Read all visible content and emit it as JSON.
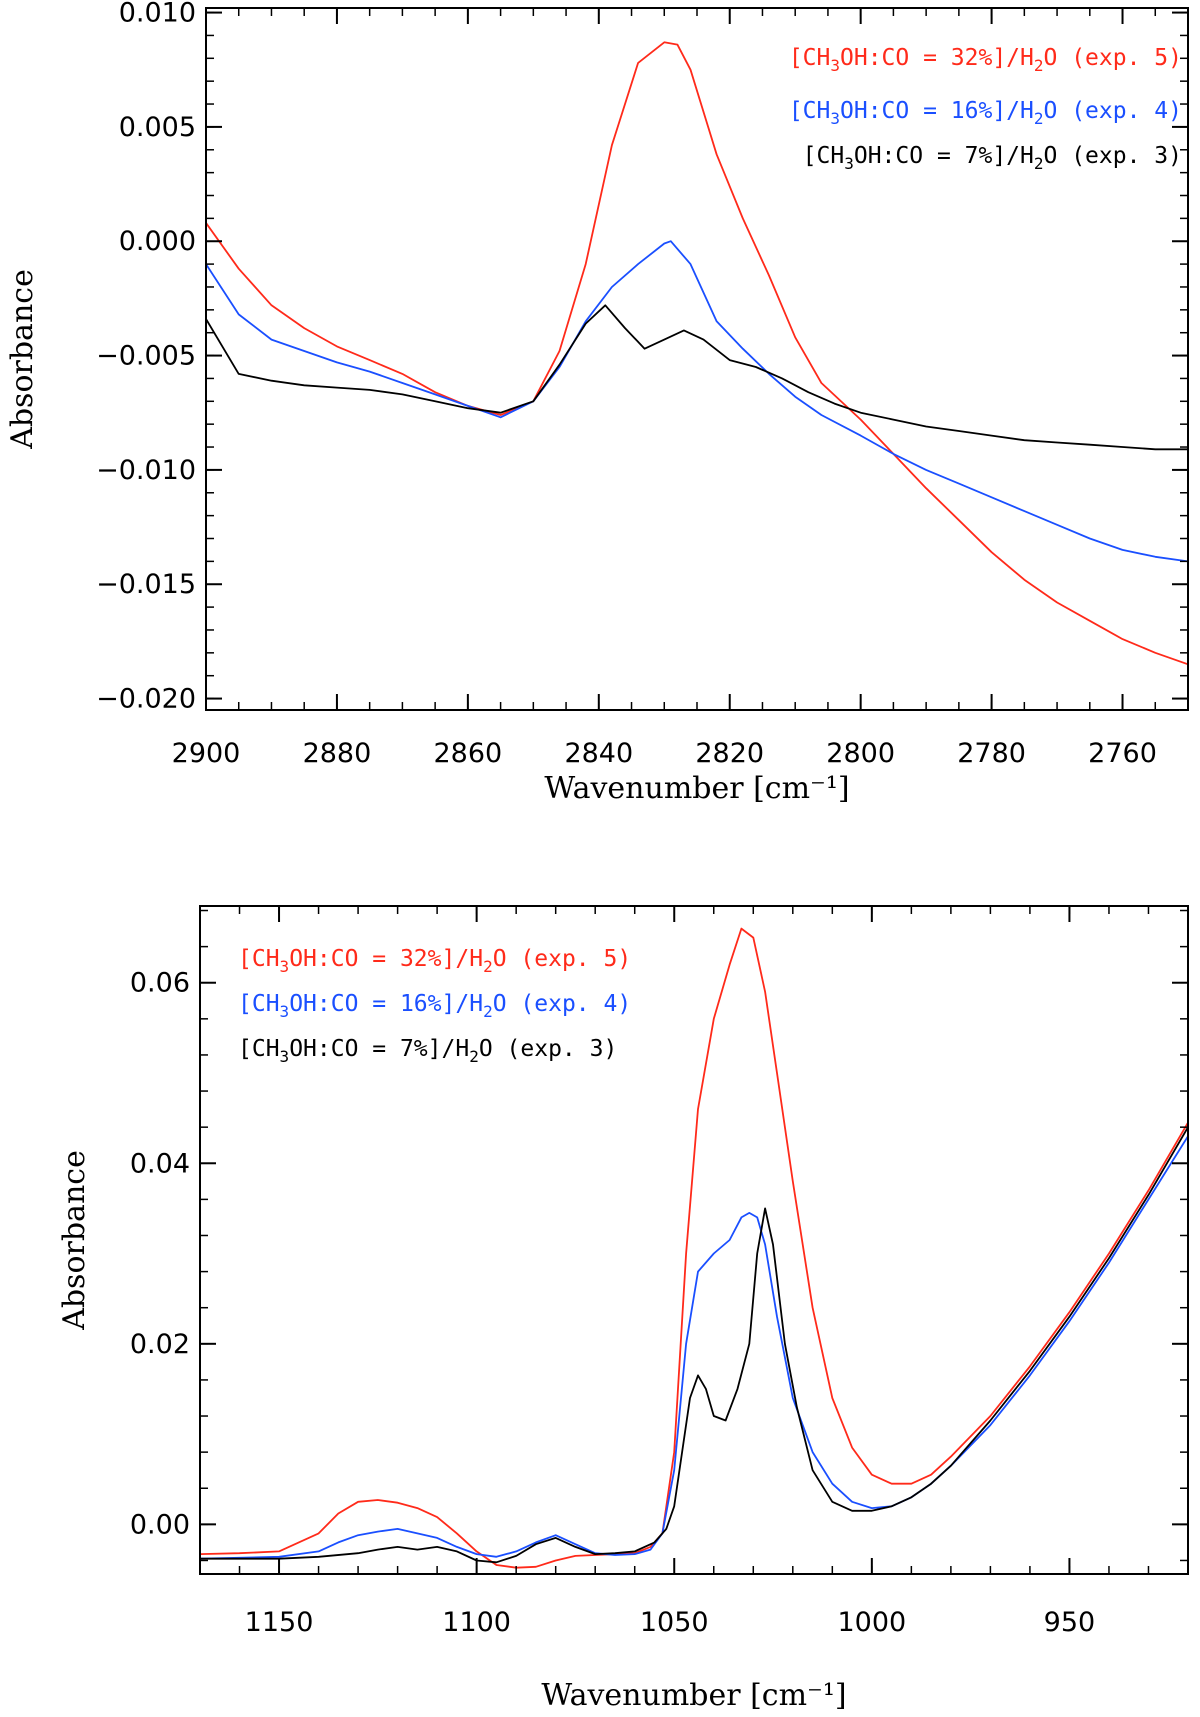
{
  "chart_data": [
    {
      "type": "line",
      "id": "top",
      "title": "",
      "xlabel": "Wavenumber [cm⁻¹]",
      "ylabel": "Absorbance",
      "xlim": [
        2900,
        2750
      ],
      "ylim": [
        -0.0205,
        0.0102
      ],
      "x_ticks": [
        2900,
        2880,
        2860,
        2840,
        2820,
        2800,
        2780,
        2760
      ],
      "x_tick_labels": [
        "2900",
        "2880",
        "2860",
        "2840",
        "2820",
        "2800",
        "2780",
        "2760"
      ],
      "y_ticks": [
        0.01,
        0.005,
        0.0,
        -0.005,
        -0.01,
        -0.015,
        -0.02
      ],
      "y_tick_labels": [
        "0.010",
        "0.005",
        "0.000",
        "−0.005",
        "−0.010",
        "−0.015",
        "−0.020"
      ],
      "x_minor_step": 5,
      "y_minor_step": 0.001,
      "legend_position": "top-right",
      "series": [
        {
          "name": "[CH3OH:CO = 32%]/H2O (exp. 5)",
          "legend": {
            "pre": "[CH",
            "sub1": "3",
            "mid": "OH:CO = 32%]/H",
            "sub2": "2",
            "post": "O (exp. 5)"
          },
          "color": "#ff2a1a",
          "x": [
            2900,
            2895,
            2890,
            2885,
            2880,
            2875,
            2870,
            2865,
            2860,
            2855,
            2850,
            2846,
            2842,
            2838,
            2834,
            2830,
            2828,
            2826,
            2822,
            2818,
            2814,
            2810,
            2806,
            2800,
            2795,
            2790,
            2785,
            2780,
            2775,
            2770,
            2765,
            2760,
            2755,
            2750
          ],
          "y": [
            0.0008,
            -0.0012,
            -0.0028,
            -0.0038,
            -0.0046,
            -0.0052,
            -0.0058,
            -0.0066,
            -0.0072,
            -0.0076,
            -0.007,
            -0.0048,
            -0.001,
            0.0042,
            0.0078,
            0.0087,
            0.0086,
            0.0075,
            0.0038,
            0.001,
            -0.0015,
            -0.0042,
            -0.0062,
            -0.0078,
            -0.0093,
            -0.0108,
            -0.0122,
            -0.0136,
            -0.0148,
            -0.0158,
            -0.0166,
            -0.0174,
            -0.018,
            -0.0185
          ]
        },
        {
          "name": "[CH3OH:CO = 16%]/H2O (exp. 4)",
          "legend": {
            "pre": "[CH",
            "sub1": "3",
            "mid": "OH:CO = 16%]/H",
            "sub2": "2",
            "post": "O (exp. 4)"
          },
          "color": "#1a4fff",
          "x": [
            2900,
            2895,
            2890,
            2885,
            2880,
            2875,
            2870,
            2865,
            2860,
            2855,
            2850,
            2846,
            2842,
            2838,
            2834,
            2830,
            2829,
            2826,
            2822,
            2818,
            2814,
            2810,
            2806,
            2800,
            2795,
            2790,
            2785,
            2780,
            2775,
            2770,
            2765,
            2760,
            2755,
            2750
          ],
          "y": [
            -0.001,
            -0.0032,
            -0.0043,
            -0.0048,
            -0.0053,
            -0.0057,
            -0.0062,
            -0.0067,
            -0.0072,
            -0.0077,
            -0.007,
            -0.0055,
            -0.0035,
            -0.002,
            -0.001,
            -0.0001,
            0.0,
            -0.001,
            -0.0035,
            -0.0047,
            -0.0058,
            -0.0068,
            -0.0076,
            -0.0085,
            -0.0093,
            -0.01,
            -0.0106,
            -0.0112,
            -0.0118,
            -0.0124,
            -0.013,
            -0.0135,
            -0.0138,
            -0.014
          ]
        },
        {
          "name": "[CH3OH:CO = 7%]/H2O (exp. 3)",
          "legend": {
            "pre": "[CH",
            "sub1": "3",
            "mid": "OH:CO = 7%]/H",
            "sub2": "2",
            "post": "O (exp. 3)"
          },
          "color": "#000000",
          "x": [
            2900,
            2895,
            2890,
            2885,
            2880,
            2875,
            2870,
            2865,
            2860,
            2855,
            2850,
            2846,
            2842,
            2839,
            2836,
            2833,
            2830,
            2827,
            2824,
            2820,
            2816,
            2812,
            2808,
            2804,
            2800,
            2795,
            2790,
            2785,
            2780,
            2775,
            2770,
            2765,
            2760,
            2755,
            2750
          ],
          "y": [
            -0.0034,
            -0.0058,
            -0.0061,
            -0.0063,
            -0.0064,
            -0.0065,
            -0.0067,
            -0.007,
            -0.0073,
            -0.0075,
            -0.007,
            -0.0054,
            -0.0036,
            -0.0028,
            -0.0038,
            -0.0047,
            -0.0043,
            -0.0039,
            -0.0043,
            -0.0052,
            -0.0055,
            -0.006,
            -0.0066,
            -0.0071,
            -0.0075,
            -0.0078,
            -0.0081,
            -0.0083,
            -0.0085,
            -0.0087,
            -0.0088,
            -0.0089,
            -0.009,
            -0.0091,
            -0.0091
          ]
        }
      ]
    },
    {
      "type": "line",
      "id": "bottom",
      "title": "",
      "xlabel": "Wavenumber [cm⁻¹]",
      "ylabel": "Absorbance",
      "xlim": [
        1170,
        920
      ],
      "ylim": [
        -0.0055,
        0.0685
      ],
      "x_ticks": [
        1150,
        1100,
        1050,
        1000,
        950
      ],
      "x_tick_labels": [
        "1150",
        "1100",
        "1050",
        "1000",
        "950"
      ],
      "y_ticks": [
        0.0,
        0.02,
        0.04,
        0.06
      ],
      "y_tick_labels": [
        "0.00",
        "0.02",
        "0.04",
        "0.06"
      ],
      "x_minor_step": 10,
      "y_minor_step": 0.004,
      "legend_position": "top-left",
      "series": [
        {
          "name": "[CH3OH:CO = 32%]/H2O (exp. 5)",
          "legend": {
            "pre": "[CH",
            "sub1": "3",
            "mid": "OH:CO = 32%]/H",
            "sub2": "2",
            "post": "O (exp. 5)"
          },
          "color": "#ff2a1a",
          "x": [
            1170,
            1160,
            1150,
            1140,
            1135,
            1130,
            1125,
            1120,
            1115,
            1110,
            1105,
            1100,
            1095,
            1090,
            1085,
            1080,
            1075,
            1070,
            1065,
            1060,
            1056,
            1053,
            1050,
            1047,
            1044,
            1040,
            1036,
            1033,
            1030,
            1027,
            1024,
            1020,
            1015,
            1010,
            1005,
            1000,
            995,
            990,
            985,
            980,
            970,
            960,
            950,
            940,
            930,
            920
          ],
          "y": [
            -0.0033,
            -0.0032,
            -0.003,
            -0.001,
            0.0012,
            0.0025,
            0.0027,
            0.0024,
            0.0018,
            0.0008,
            -0.001,
            -0.003,
            -0.0045,
            -0.0048,
            -0.0047,
            -0.004,
            -0.0035,
            -0.0034,
            -0.0033,
            -0.0032,
            -0.0025,
            -0.001,
            0.008,
            0.03,
            0.046,
            0.056,
            0.062,
            0.066,
            0.065,
            0.059,
            0.05,
            0.038,
            0.024,
            0.014,
            0.0085,
            0.0055,
            0.0045,
            0.0045,
            0.0055,
            0.0075,
            0.012,
            0.0175,
            0.0235,
            0.03,
            0.037,
            0.0445
          ]
        },
        {
          "name": "[CH3OH:CO = 16%]/H2O (exp. 4)",
          "legend": {
            "pre": "[CH",
            "sub1": "3",
            "mid": "OH:CO = 16%]/H",
            "sub2": "2",
            "post": "O (exp. 4)"
          },
          "color": "#1a4fff",
          "x": [
            1170,
            1160,
            1150,
            1140,
            1135,
            1130,
            1125,
            1120,
            1115,
            1110,
            1105,
            1100,
            1095,
            1090,
            1085,
            1080,
            1075,
            1070,
            1065,
            1060,
            1056,
            1053,
            1050,
            1047,
            1044,
            1040,
            1036,
            1033,
            1031,
            1029,
            1027,
            1024,
            1020,
            1015,
            1010,
            1005,
            1000,
            995,
            990,
            985,
            980,
            970,
            960,
            950,
            940,
            930,
            920
          ],
          "y": [
            -0.0038,
            -0.0037,
            -0.0036,
            -0.003,
            -0.002,
            -0.0012,
            -0.0008,
            -0.0005,
            -0.001,
            -0.0015,
            -0.0025,
            -0.0033,
            -0.0036,
            -0.003,
            -0.002,
            -0.0012,
            -0.0022,
            -0.0032,
            -0.0034,
            -0.0033,
            -0.0028,
            -0.001,
            0.006,
            0.02,
            0.028,
            0.03,
            0.0315,
            0.034,
            0.0345,
            0.034,
            0.031,
            0.023,
            0.014,
            0.008,
            0.0045,
            0.0025,
            0.0018,
            0.002,
            0.003,
            0.0045,
            0.0065,
            0.011,
            0.0165,
            0.0225,
            0.029,
            0.036,
            0.043
          ]
        },
        {
          "name": "[CH3OH:CO = 7%]/H2O (exp. 3)",
          "legend": {
            "pre": "[CH",
            "sub1": "3",
            "mid": "OH:CO = 7%]/H",
            "sub2": "2",
            "post": "O (exp. 3)"
          },
          "color": "#000000",
          "x": [
            1170,
            1160,
            1150,
            1140,
            1130,
            1125,
            1120,
            1115,
            1110,
            1105,
            1100,
            1095,
            1090,
            1085,
            1080,
            1075,
            1070,
            1065,
            1060,
            1055,
            1052,
            1050,
            1048,
            1046,
            1044,
            1042,
            1040,
            1037,
            1034,
            1031,
            1029,
            1027,
            1025,
            1022,
            1019,
            1015,
            1010,
            1005,
            1000,
            995,
            990,
            985,
            980,
            970,
            960,
            950,
            940,
            930,
            920
          ],
          "y": [
            -0.0038,
            -0.0038,
            -0.0038,
            -0.0036,
            -0.0032,
            -0.0028,
            -0.0025,
            -0.0028,
            -0.0025,
            -0.003,
            -0.004,
            -0.0042,
            -0.0035,
            -0.0022,
            -0.0015,
            -0.0025,
            -0.0033,
            -0.0032,
            -0.003,
            -0.002,
            -0.0005,
            0.002,
            0.008,
            0.014,
            0.0165,
            0.015,
            0.012,
            0.0115,
            0.015,
            0.02,
            0.03,
            0.035,
            0.031,
            0.02,
            0.013,
            0.006,
            0.0025,
            0.0015,
            0.0015,
            0.002,
            0.003,
            0.0045,
            0.0065,
            0.0115,
            0.017,
            0.023,
            0.0295,
            0.0365,
            0.044
          ]
        }
      ]
    }
  ]
}
